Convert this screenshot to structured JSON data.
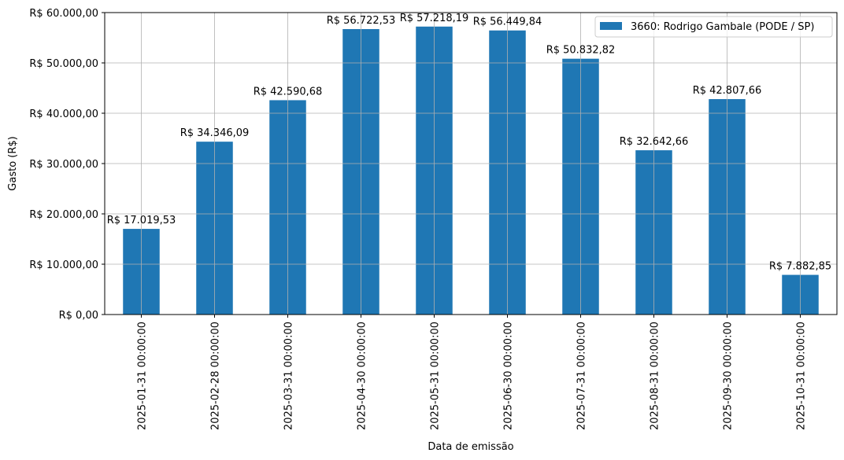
{
  "chart_data": {
    "type": "bar",
    "categories": [
      "2025-01-31 00:00:00",
      "2025-02-28 00:00:00",
      "2025-03-31 00:00:00",
      "2025-04-30 00:00:00",
      "2025-05-31 00:00:00",
      "2025-06-30 00:00:00",
      "2025-07-31 00:00:00",
      "2025-08-31 00:00:00",
      "2025-09-30 00:00:00",
      "2025-10-31 00:00:00"
    ],
    "series": [
      {
        "name": "3660: Rodrigo Gambale (PODE / SP)",
        "values": [
          17019.53,
          34346.09,
          42590.68,
          56722.53,
          57218.19,
          56449.84,
          50832.82,
          32642.66,
          42807.66,
          7882.85
        ],
        "color": "#1f77b4"
      }
    ],
    "data_labels": [
      "R$ 17.019,53",
      "R$ 34.346,09",
      "R$ 42.590,68",
      "R$ 56.722,53",
      "R$ 57.218,19",
      "R$ 56.449,84",
      "R$ 50.832,82",
      "R$ 32.642,66",
      "R$ 42.807,66",
      "R$ 7.882,85"
    ],
    "yticks": [
      0,
      10000,
      20000,
      30000,
      40000,
      50000,
      60000
    ],
    "ytick_labels": [
      "R$ 0,00",
      "R$ 10.000,00",
      "R$ 20.000,00",
      "R$ 30.000,00",
      "R$ 40.000,00",
      "R$ 50.000,00",
      "R$ 60.000,00"
    ],
    "ylim": [
      0,
      60000
    ],
    "xlabel": "Data de emissão",
    "ylabel": "Gasto (R$)",
    "grid": true,
    "legend_position": "top-right"
  }
}
